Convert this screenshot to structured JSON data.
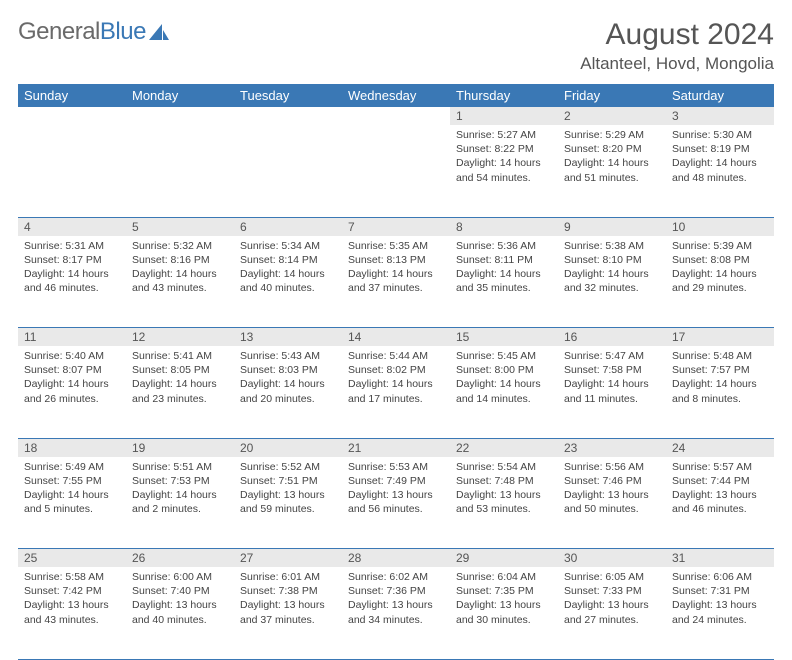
{
  "brand": {
    "part1": "General",
    "part2": "Blue"
  },
  "title": "August 2024",
  "location": "Altanteel, Hovd, Mongolia",
  "colors": {
    "header_bg": "#3a78b5",
    "header_fg": "#ffffff",
    "daynum_bg": "#e9e9e9",
    "text": "#444444",
    "brand_gray": "#6a6a6a",
    "brand_blue": "#3a78b5",
    "rule": "#3a78b5"
  },
  "typography": {
    "title_fontsize": 30,
    "location_fontsize": 17,
    "weekday_fontsize": 13,
    "daynum_fontsize": 12,
    "body_fontsize": 10.5
  },
  "weekdays": [
    "Sunday",
    "Monday",
    "Tuesday",
    "Wednesday",
    "Thursday",
    "Friday",
    "Saturday"
  ],
  "weeks": [
    [
      null,
      null,
      null,
      null,
      {
        "n": "1",
        "sunrise": "5:27 AM",
        "sunset": "8:22 PM",
        "dl_h": "14",
        "dl_m": "54"
      },
      {
        "n": "2",
        "sunrise": "5:29 AM",
        "sunset": "8:20 PM",
        "dl_h": "14",
        "dl_m": "51"
      },
      {
        "n": "3",
        "sunrise": "5:30 AM",
        "sunset": "8:19 PM",
        "dl_h": "14",
        "dl_m": "48"
      }
    ],
    [
      {
        "n": "4",
        "sunrise": "5:31 AM",
        "sunset": "8:17 PM",
        "dl_h": "14",
        "dl_m": "46"
      },
      {
        "n": "5",
        "sunrise": "5:32 AM",
        "sunset": "8:16 PM",
        "dl_h": "14",
        "dl_m": "43"
      },
      {
        "n": "6",
        "sunrise": "5:34 AM",
        "sunset": "8:14 PM",
        "dl_h": "14",
        "dl_m": "40"
      },
      {
        "n": "7",
        "sunrise": "5:35 AM",
        "sunset": "8:13 PM",
        "dl_h": "14",
        "dl_m": "37"
      },
      {
        "n": "8",
        "sunrise": "5:36 AM",
        "sunset": "8:11 PM",
        "dl_h": "14",
        "dl_m": "35"
      },
      {
        "n": "9",
        "sunrise": "5:38 AM",
        "sunset": "8:10 PM",
        "dl_h": "14",
        "dl_m": "32"
      },
      {
        "n": "10",
        "sunrise": "5:39 AM",
        "sunset": "8:08 PM",
        "dl_h": "14",
        "dl_m": "29"
      }
    ],
    [
      {
        "n": "11",
        "sunrise": "5:40 AM",
        "sunset": "8:07 PM",
        "dl_h": "14",
        "dl_m": "26"
      },
      {
        "n": "12",
        "sunrise": "5:41 AM",
        "sunset": "8:05 PM",
        "dl_h": "14",
        "dl_m": "23"
      },
      {
        "n": "13",
        "sunrise": "5:43 AM",
        "sunset": "8:03 PM",
        "dl_h": "14",
        "dl_m": "20"
      },
      {
        "n": "14",
        "sunrise": "5:44 AM",
        "sunset": "8:02 PM",
        "dl_h": "14",
        "dl_m": "17"
      },
      {
        "n": "15",
        "sunrise": "5:45 AM",
        "sunset": "8:00 PM",
        "dl_h": "14",
        "dl_m": "14"
      },
      {
        "n": "16",
        "sunrise": "5:47 AM",
        "sunset": "7:58 PM",
        "dl_h": "14",
        "dl_m": "11"
      },
      {
        "n": "17",
        "sunrise": "5:48 AM",
        "sunset": "7:57 PM",
        "dl_h": "14",
        "dl_m": "8"
      }
    ],
    [
      {
        "n": "18",
        "sunrise": "5:49 AM",
        "sunset": "7:55 PM",
        "dl_h": "14",
        "dl_m": "5"
      },
      {
        "n": "19",
        "sunrise": "5:51 AM",
        "sunset": "7:53 PM",
        "dl_h": "14",
        "dl_m": "2"
      },
      {
        "n": "20",
        "sunrise": "5:52 AM",
        "sunset": "7:51 PM",
        "dl_h": "13",
        "dl_m": "59"
      },
      {
        "n": "21",
        "sunrise": "5:53 AM",
        "sunset": "7:49 PM",
        "dl_h": "13",
        "dl_m": "56"
      },
      {
        "n": "22",
        "sunrise": "5:54 AM",
        "sunset": "7:48 PM",
        "dl_h": "13",
        "dl_m": "53"
      },
      {
        "n": "23",
        "sunrise": "5:56 AM",
        "sunset": "7:46 PM",
        "dl_h": "13",
        "dl_m": "50"
      },
      {
        "n": "24",
        "sunrise": "5:57 AM",
        "sunset": "7:44 PM",
        "dl_h": "13",
        "dl_m": "46"
      }
    ],
    [
      {
        "n": "25",
        "sunrise": "5:58 AM",
        "sunset": "7:42 PM",
        "dl_h": "13",
        "dl_m": "43"
      },
      {
        "n": "26",
        "sunrise": "6:00 AM",
        "sunset": "7:40 PM",
        "dl_h": "13",
        "dl_m": "40"
      },
      {
        "n": "27",
        "sunrise": "6:01 AM",
        "sunset": "7:38 PM",
        "dl_h": "13",
        "dl_m": "37"
      },
      {
        "n": "28",
        "sunrise": "6:02 AM",
        "sunset": "7:36 PM",
        "dl_h": "13",
        "dl_m": "34"
      },
      {
        "n": "29",
        "sunrise": "6:04 AM",
        "sunset": "7:35 PM",
        "dl_h": "13",
        "dl_m": "30"
      },
      {
        "n": "30",
        "sunrise": "6:05 AM",
        "sunset": "7:33 PM",
        "dl_h": "13",
        "dl_m": "27"
      },
      {
        "n": "31",
        "sunrise": "6:06 AM",
        "sunset": "7:31 PM",
        "dl_h": "13",
        "dl_m": "24"
      }
    ]
  ]
}
